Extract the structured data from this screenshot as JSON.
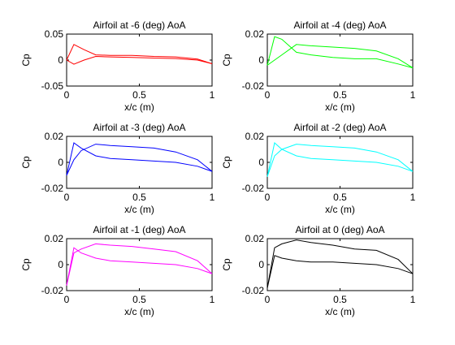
{
  "chart_data": [
    {
      "type": "line",
      "title": "Airfoil at -6 (deg) AoA",
      "xlabel": "x/c (m)",
      "ylabel": "Cp",
      "xlim": [
        0,
        1
      ],
      "ylim": [
        -0.05,
        0.05
      ],
      "xticks": [
        "0",
        "0.5",
        "1"
      ],
      "yticks": [
        "-0.05",
        "0",
        "0.05"
      ],
      "color": "#ff0000",
      "series": [
        {
          "x": [
            0,
            0.05,
            0.12,
            0.2,
            0.3,
            0.45,
            0.6,
            0.75,
            0.9,
            1.0
          ],
          "values": [
            0.0,
            0.03,
            0.02,
            0.01,
            0.009,
            0.009,
            0.007,
            0.006,
            0.002,
            -0.007
          ]
        },
        {
          "x": [
            0,
            0.05,
            0.12,
            0.2,
            0.3,
            0.45,
            0.6,
            0.75,
            0.9,
            1.0
          ],
          "values": [
            0.0,
            -0.008,
            0.0,
            0.007,
            0.006,
            0.005,
            0.004,
            0.003,
            0.0,
            -0.007
          ]
        }
      ]
    },
    {
      "type": "line",
      "title": "Airfoil at -4 (deg) AoA",
      "xlabel": "x/c (m)",
      "ylabel": "Cp",
      "xlim": [
        0,
        1
      ],
      "ylim": [
        -0.02,
        0.02
      ],
      "xticks": [
        "0",
        "0.5",
        "1"
      ],
      "yticks": [
        "-0.02",
        "0",
        "0.02"
      ],
      "color": "#00ff00",
      "series": [
        {
          "x": [
            0,
            0.05,
            0.1,
            0.2,
            0.3,
            0.45,
            0.6,
            0.75,
            0.9,
            1.0
          ],
          "values": [
            -0.004,
            0.018,
            0.016,
            0.006,
            0.004,
            0.002,
            0.001,
            0.001,
            -0.003,
            -0.006
          ]
        },
        {
          "x": [
            0,
            0.05,
            0.1,
            0.2,
            0.3,
            0.45,
            0.6,
            0.75,
            0.9,
            1.0
          ],
          "values": [
            -0.004,
            0.0,
            0.004,
            0.012,
            0.011,
            0.01,
            0.009,
            0.007,
            0.001,
            -0.006
          ]
        }
      ]
    },
    {
      "type": "line",
      "title": "Airfoil at -3 (deg) AoA",
      "xlabel": "x/c (m)",
      "ylabel": "Cp",
      "xlim": [
        0,
        1
      ],
      "ylim": [
        -0.02,
        0.02
      ],
      "xticks": [
        "0",
        "0.5",
        "1"
      ],
      "yticks": [
        "-0.02",
        "0",
        "0.02"
      ],
      "color": "#0000ff",
      "series": [
        {
          "x": [
            0,
            0.05,
            0.1,
            0.2,
            0.3,
            0.45,
            0.6,
            0.75,
            0.9,
            1.0
          ],
          "values": [
            -0.01,
            0.015,
            0.011,
            0.005,
            0.003,
            0.002,
            0.001,
            0.0,
            -0.003,
            -0.007
          ]
        },
        {
          "x": [
            0,
            0.05,
            0.1,
            0.2,
            0.3,
            0.45,
            0.6,
            0.75,
            0.9,
            1.0
          ],
          "values": [
            -0.01,
            0.002,
            0.009,
            0.014,
            0.013,
            0.012,
            0.011,
            0.008,
            0.002,
            -0.007
          ]
        }
      ]
    },
    {
      "type": "line",
      "title": "Airfoil at -2 (deg) AoA",
      "xlabel": "x/c (m)",
      "ylabel": "Cp",
      "xlim": [
        0,
        1
      ],
      "ylim": [
        -0.02,
        0.02
      ],
      "xticks": [
        "0",
        "0.5",
        "1"
      ],
      "yticks": [
        "-0.02",
        "0",
        "0.02"
      ],
      "color": "#00ffff",
      "series": [
        {
          "x": [
            0,
            0.05,
            0.1,
            0.2,
            0.3,
            0.45,
            0.6,
            0.75,
            0.9,
            1.0
          ],
          "values": [
            -0.011,
            0.015,
            0.01,
            0.005,
            0.003,
            0.002,
            0.001,
            0.0,
            -0.003,
            -0.007
          ]
        },
        {
          "x": [
            0,
            0.05,
            0.1,
            0.2,
            0.3,
            0.45,
            0.6,
            0.75,
            0.9,
            1.0
          ],
          "values": [
            -0.011,
            0.005,
            0.01,
            0.014,
            0.013,
            0.012,
            0.011,
            0.008,
            0.002,
            -0.007
          ]
        }
      ]
    },
    {
      "type": "line",
      "title": "Airfoil at -1 (deg) AoA",
      "xlabel": "x/c (m)",
      "ylabel": "Cp",
      "xlim": [
        0,
        1
      ],
      "ylim": [
        -0.02,
        0.02
      ],
      "xticks": [
        "0",
        "0.5",
        "1"
      ],
      "yticks": [
        "-0.02",
        "0",
        "0.02"
      ],
      "color": "#ff00ff",
      "series": [
        {
          "x": [
            0,
            0.05,
            0.1,
            0.2,
            0.3,
            0.45,
            0.6,
            0.75,
            0.9,
            1.0
          ],
          "values": [
            -0.016,
            0.013,
            0.009,
            0.005,
            0.003,
            0.002,
            0.001,
            0.0,
            -0.003,
            -0.007
          ]
        },
        {
          "x": [
            0,
            0.05,
            0.1,
            0.2,
            0.3,
            0.45,
            0.6,
            0.75,
            0.9,
            1.0
          ],
          "values": [
            -0.016,
            0.009,
            0.012,
            0.016,
            0.015,
            0.014,
            0.012,
            0.01,
            0.003,
            -0.007
          ]
        }
      ]
    },
    {
      "type": "line",
      "title": "Airfoil at 0 (deg) AoA",
      "xlabel": "x/c (m)",
      "ylabel": "Cp",
      "xlim": [
        0,
        1
      ],
      "ylim": [
        -0.02,
        0.02
      ],
      "xticks": [
        "0",
        "0.5",
        "1"
      ],
      "yticks": [
        "-0.02",
        "0",
        "0.02"
      ],
      "color": "#000000",
      "series": [
        {
          "x": [
            0,
            0.05,
            0.1,
            0.2,
            0.3,
            0.45,
            0.6,
            0.75,
            0.9,
            1.0
          ],
          "values": [
            -0.018,
            0.013,
            0.016,
            0.019,
            0.017,
            0.015,
            0.012,
            0.011,
            0.004,
            -0.007
          ]
        },
        {
          "x": [
            0,
            0.05,
            0.1,
            0.2,
            0.3,
            0.45,
            0.6,
            0.75,
            0.9,
            1.0
          ],
          "values": [
            -0.018,
            0.007,
            0.005,
            0.003,
            0.002,
            0.002,
            0.001,
            0.0,
            -0.003,
            -0.007
          ]
        }
      ]
    }
  ]
}
